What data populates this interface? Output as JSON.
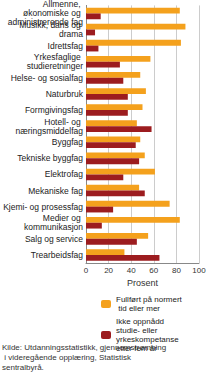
{
  "chart_data": {
    "type": "bar",
    "orientation": "horizontal",
    "grid": true,
    "legend": "bottom",
    "categories": [
      "Allmenne, økonomiske og administrerende fag",
      "Musikk, dans og drama",
      "Idrettsfag",
      "Yrkesfaglige studieretninger",
      "Helse- og sosialfag",
      "Naturbruk",
      "Formgivingsfag",
      "Hotell- og næringsmiddelfag",
      "Byggfag",
      "Tekniske byggfag",
      "Elektrofag",
      "Mekaniske fag",
      "Kjemi- og prosessfag",
      "Medier og kommunikasjon",
      "Salg og service",
      "Trearbeidsfag"
    ],
    "series": [
      {
        "name": "Fullført på normert tid eller mer",
        "color": "#f4a11d",
        "values": [
          83,
          88,
          84,
          57,
          48,
          53,
          50,
          45,
          48,
          52,
          61,
          47,
          74,
          83,
          55,
          34
        ]
      },
      {
        "name": "Ikke oppnådd studie- eller yrkeskompetanse etter fem år",
        "color": "#9c1c1f",
        "values": [
          13,
          8,
          11,
          30,
          33,
          37,
          37,
          58,
          44,
          47,
          33,
          52,
          24,
          14,
          45,
          65
        ]
      }
    ],
    "xlabel": "Prosent",
    "xlim": [
      0,
      100
    ],
    "xticks": [
      0,
      20,
      40,
      60,
      80,
      100
    ],
    "annotations": [
      "Kilde: Utdanningsstatistikk, gjennomstrømning i videregående opplæring, Statistisk sentralbyrå."
    ]
  }
}
